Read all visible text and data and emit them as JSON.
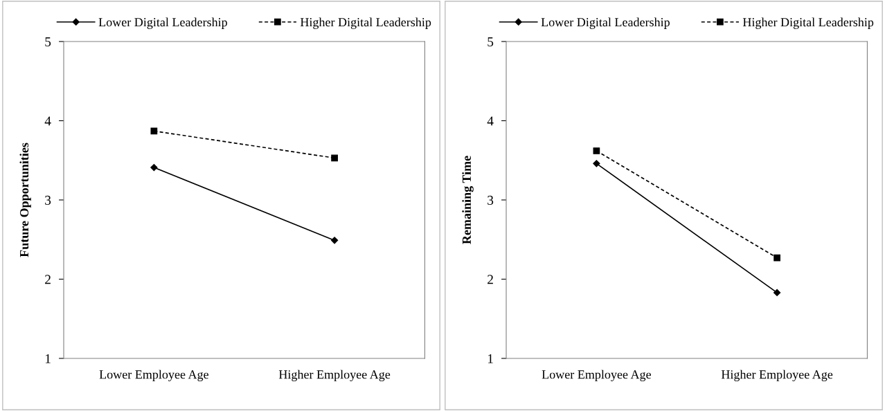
{
  "chart_data": [
    {
      "type": "line",
      "ylabel": "Future Opportunities",
      "categories": [
        "Lower Employee Age",
        "Higher Employee Age"
      ],
      "ylim": [
        1,
        5
      ],
      "yticks": [
        1,
        2,
        3,
        4,
        5
      ],
      "grid": false,
      "legend": "top",
      "series": [
        {
          "name": "Lower Digital Leadership",
          "color": "#000000",
          "values": [
            3.41,
            2.49
          ],
          "marker": "diamond",
          "line_style": "solid"
        },
        {
          "name": "Higher Digital Leadership",
          "color": "#000000",
          "values": [
            3.87,
            3.53
          ],
          "marker": "square",
          "line_style": "dashed"
        }
      ]
    },
    {
      "type": "line",
      "ylabel": "Remaining Time",
      "categories": [
        "Lower Employee Age",
        "Higher Employee Age"
      ],
      "ylim": [
        1,
        5
      ],
      "yticks": [
        1,
        2,
        3,
        4,
        5
      ],
      "grid": false,
      "legend": "top",
      "series": [
        {
          "name": "Lower Digital Leadership",
          "color": "#000000",
          "values": [
            3.46,
            1.83
          ],
          "marker": "diamond",
          "line_style": "solid"
        },
        {
          "name": "Higher Digital Leadership",
          "color": "#000000",
          "values": [
            3.62,
            2.27
          ],
          "marker": "square",
          "line_style": "dashed"
        }
      ]
    }
  ]
}
